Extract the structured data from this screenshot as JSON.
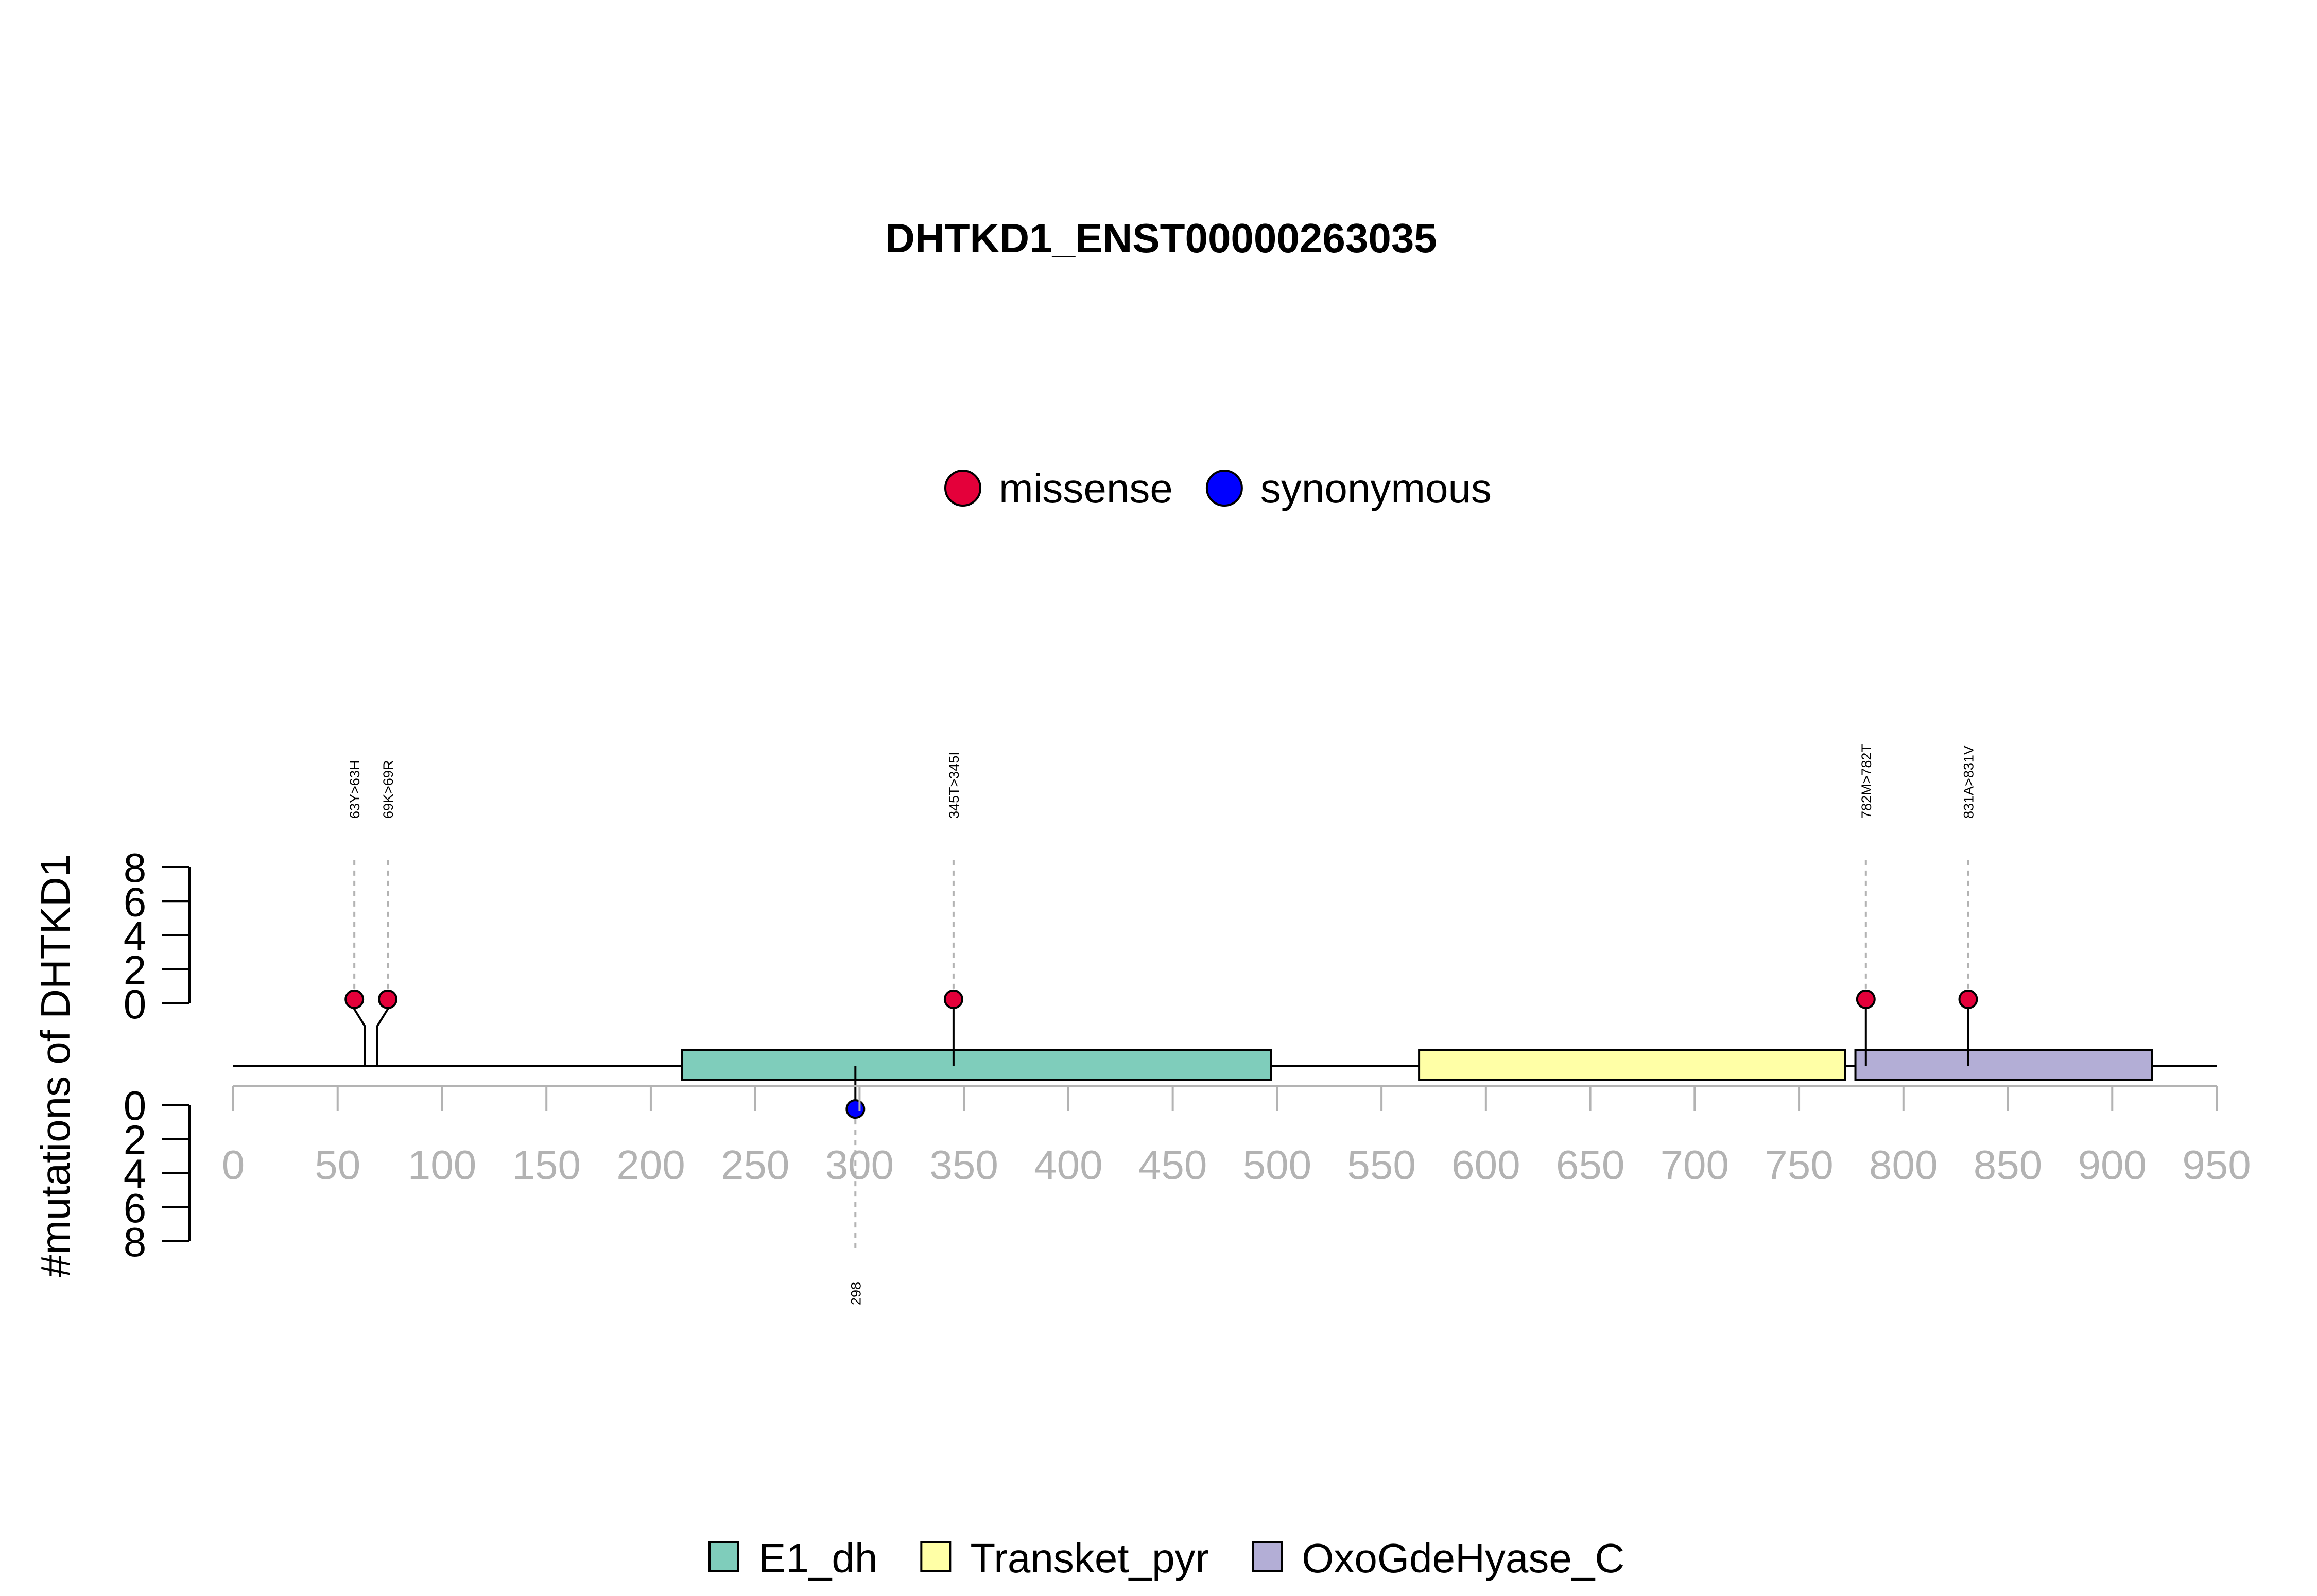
{
  "chart_data": {
    "type": "lollipop",
    "title": "DHTKD1_ENST00000263035",
    "ylabel": "#mutations of DHTKD1",
    "xlim": [
      0,
      950
    ],
    "x_ticks": [
      0,
      50,
      100,
      150,
      200,
      250,
      300,
      350,
      400,
      450,
      500,
      550,
      600,
      650,
      700,
      750,
      800,
      850,
      900,
      950
    ],
    "ylim_upper": [
      0,
      8
    ],
    "ylim_lower": [
      0,
      8
    ],
    "y_ticks": [
      0,
      2,
      4,
      6,
      8
    ],
    "protein_length": 950,
    "mutation_legend": [
      {
        "name": "missense",
        "color": "#e4003a"
      },
      {
        "name": "synonymous",
        "color": "#0000ff"
      }
    ],
    "domains": [
      {
        "name": "E1_dh",
        "start": 215,
        "end": 497,
        "color": "#7fcdbb"
      },
      {
        "name": "Transket_pyr",
        "start": 568,
        "end": 772,
        "color": "#ffffa6"
      },
      {
        "name": "OxoGdeHyase_C",
        "start": 777,
        "end": 919,
        "color": "#b3aed6"
      }
    ],
    "mutations": [
      {
        "label": "63Y>63H",
        "position": 63,
        "display_position": 58,
        "count": 1,
        "type": "missense",
        "side": "top"
      },
      {
        "label": "69K>69R",
        "position": 69,
        "display_position": 74,
        "count": 1,
        "type": "missense",
        "side": "top"
      },
      {
        "label": "345T>345I",
        "position": 345,
        "display_position": 345,
        "count": 1,
        "type": "missense",
        "side": "top"
      },
      {
        "label": "782M>782T",
        "position": 782,
        "display_position": 782,
        "count": 1,
        "type": "missense",
        "side": "top"
      },
      {
        "label": "831A>831V",
        "position": 831,
        "display_position": 831,
        "count": 1,
        "type": "missense",
        "side": "top"
      },
      {
        "label": "298",
        "position": 298,
        "display_position": 298,
        "count": 1,
        "type": "synonymous",
        "side": "bottom"
      }
    ]
  }
}
